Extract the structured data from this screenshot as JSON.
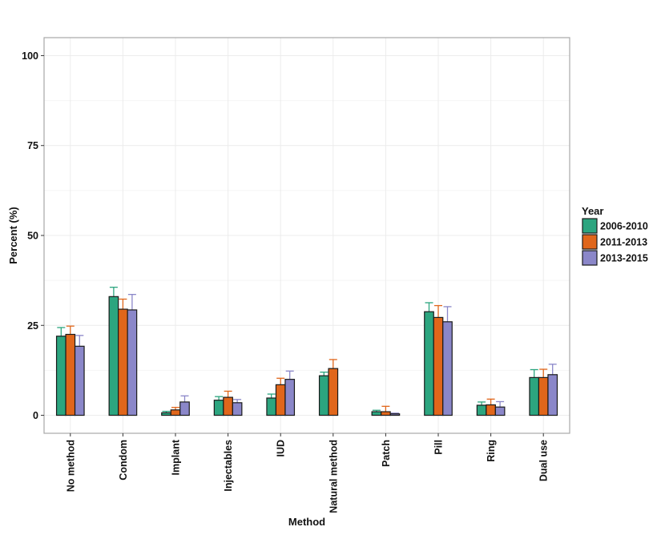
{
  "chart_data": {
    "type": "bar",
    "title": "",
    "xlabel": "Method",
    "ylabel": "Percent (%)",
    "ylim": [
      -5,
      105
    ],
    "yticks": [
      0,
      25,
      50,
      75,
      100
    ],
    "grid": true,
    "legend_placement": "right",
    "legend_title": "Year",
    "categories": [
      "No method",
      "Condom",
      "Implant",
      "Injectables",
      "IUD",
      "Natural method",
      "Patch",
      "Pill",
      "Ring",
      "Dual use"
    ],
    "series": [
      {
        "name": "2006-2010",
        "color": "#2ca57f",
        "values": [
          22.0,
          33.0,
          0.7,
          4.2,
          4.8,
          11.0,
          1.0,
          28.8,
          2.8,
          10.5
        ],
        "err_low": [
          20.0,
          30.5,
          0.3,
          3.3,
          3.7,
          10.0,
          0.6,
          26.3,
          2.1,
          9.0
        ],
        "err_high": [
          24.4,
          35.6,
          1.1,
          5.2,
          5.9,
          12.0,
          1.4,
          31.3,
          3.7,
          12.7
        ]
      },
      {
        "name": "2011-2013",
        "color": "#e0661b",
        "values": [
          22.5,
          29.5,
          1.5,
          5.0,
          8.5,
          13.0,
          1.0,
          27.2,
          2.9,
          10.5
        ],
        "err_low": [
          20.3,
          26.8,
          0.9,
          3.5,
          6.8,
          10.5,
          0.3,
          24.3,
          1.8,
          8.5
        ],
        "err_high": [
          24.8,
          32.3,
          2.2,
          6.7,
          10.3,
          15.5,
          2.5,
          30.5,
          4.5,
          12.8
        ]
      },
      {
        "name": "2013-2015",
        "color": "#8b87c9",
        "values": [
          19.2,
          29.3,
          3.7,
          3.5,
          10.0,
          null,
          0.4,
          26.0,
          2.3,
          11.3
        ],
        "err_low": [
          16.5,
          25.3,
          2.2,
          2.6,
          7.8,
          null,
          0.2,
          22.3,
          1.3,
          8.8
        ],
        "err_high": [
          22.2,
          33.6,
          5.4,
          4.4,
          12.3,
          null,
          0.6,
          30.2,
          3.8,
          14.2
        ]
      }
    ]
  }
}
